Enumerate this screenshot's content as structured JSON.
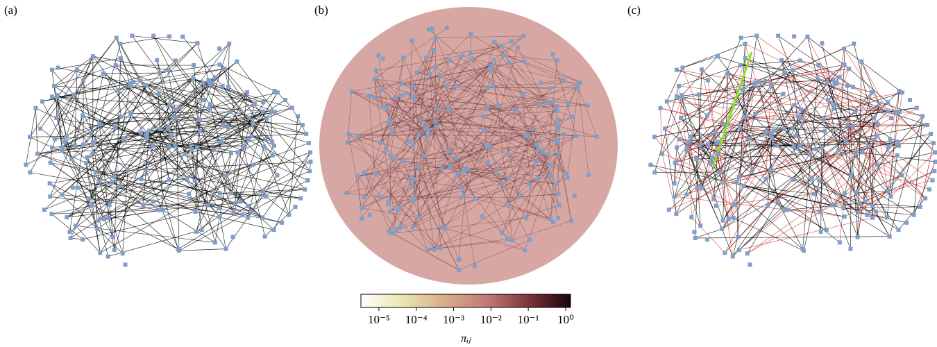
{
  "panels": [
    {
      "label": "(a)"
    },
    {
      "label": "(b)"
    },
    {
      "label": "(c)"
    }
  ],
  "colorbar": {
    "label": "πᵢⱼ",
    "scale": "log",
    "lim": [
      3.3e-06,
      1.35
    ],
    "ticks": [
      {
        "value": 1e-05,
        "label": "10⁻⁵"
      },
      {
        "value": 0.0001,
        "label": "10⁻⁴"
      },
      {
        "value": 0.001,
        "label": "10⁻³"
      },
      {
        "value": 0.01,
        "label": "10⁻²"
      },
      {
        "value": 0.1,
        "label": "10⁻¹"
      },
      {
        "value": 1,
        "label": "10⁰"
      }
    ]
  }
}
